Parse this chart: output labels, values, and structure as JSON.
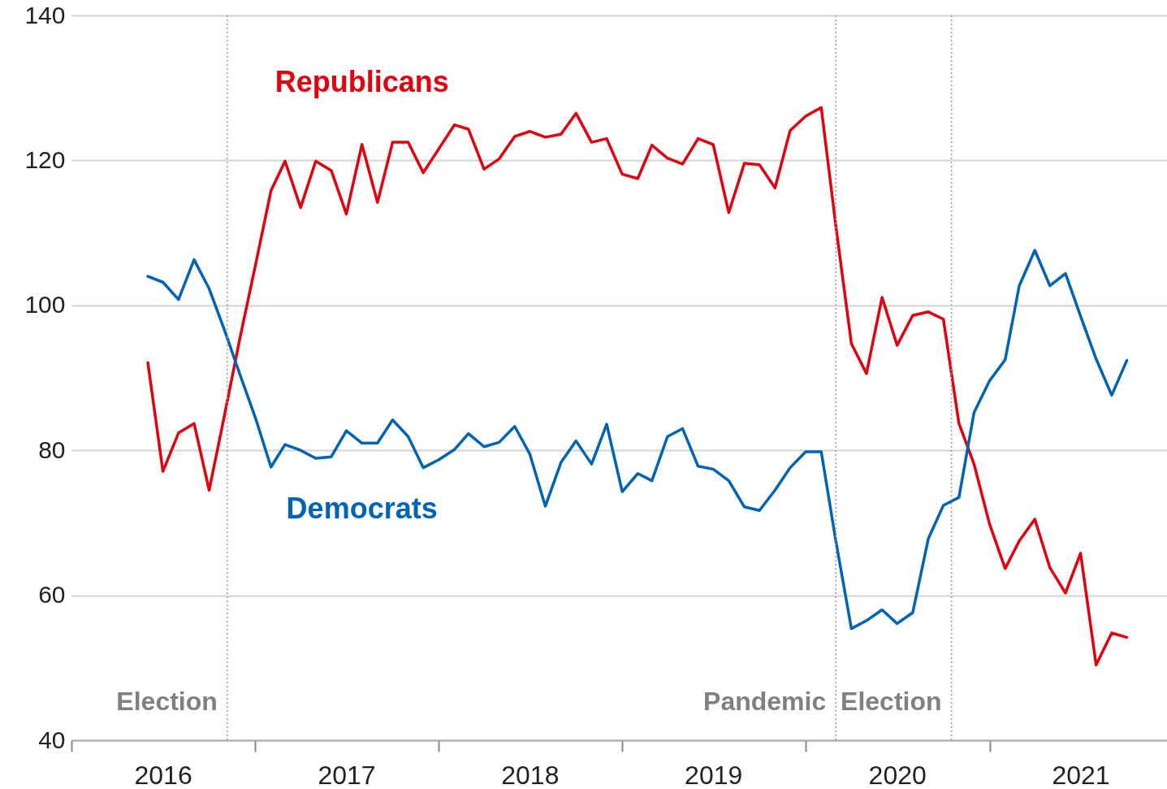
{
  "chart_data": {
    "type": "line",
    "x": [
      "2016-06",
      "2016-07",
      "2016-08",
      "2016-09",
      "2016-10",
      "2016-11",
      "2016-12",
      "2017-01",
      "2017-02",
      "2017-03",
      "2017-04",
      "2017-05",
      "2017-06",
      "2017-07",
      "2017-08",
      "2017-09",
      "2017-10",
      "2017-11",
      "2017-12",
      "2018-01",
      "2018-02",
      "2018-03",
      "2018-04",
      "2018-05",
      "2018-06",
      "2018-07",
      "2018-08",
      "2018-09",
      "2018-10",
      "2018-11",
      "2018-12",
      "2019-01",
      "2019-02",
      "2019-03",
      "2019-04",
      "2019-05",
      "2019-06",
      "2019-07",
      "2019-08",
      "2019-09",
      "2019-10",
      "2019-11",
      "2019-12",
      "2020-01",
      "2020-02",
      "2020-03",
      "2020-04",
      "2020-05",
      "2020-06",
      "2020-07",
      "2020-08",
      "2020-09",
      "2020-10",
      "2020-11",
      "2020-12",
      "2021-01",
      "2021-02",
      "2021-03",
      "2021-04",
      "2021-05",
      "2021-06",
      "2021-07",
      "2021-08",
      "2021-09",
      "2021-10"
    ],
    "series": [
      {
        "name": "Republicans",
        "color": "#e3000f",
        "values": [
          92.1,
          77.1,
          82.4,
          83.7,
          74.5,
          85,
          95.4,
          105.5,
          115.8,
          119.9,
          113.5,
          119.9,
          118.6,
          112.6,
          122.2,
          114.2,
          122.5,
          122.5,
          118.3,
          121.6,
          124.9,
          124.3,
          118.8,
          120.2,
          123.3,
          124.0,
          123.2,
          123.6,
          126.5,
          122.5,
          123.0,
          118.1,
          117.5,
          122.1,
          120.3,
          119.5,
          123.0,
          122.2,
          112.8,
          119.6,
          119.4,
          116.2,
          124.1,
          126.1,
          127.3,
          111,
          94.7,
          90.6,
          101.1,
          94.5,
          98.6,
          99.1,
          98.1,
          83.7,
          78.1,
          69.8,
          63.7,
          67.5,
          70.5,
          63.8,
          60.3,
          65.8,
          50.4,
          54.8,
          54.2
        ]
      },
      {
        "name": "Democrats",
        "color": "#0063b5",
        "values": [
          104.0,
          103.2,
          100.8,
          106.3,
          102.3,
          96.5,
          90.5,
          84.5,
          77.7,
          80.8,
          80.0,
          78.9,
          79.1,
          82.7,
          81.0,
          81.0,
          84.2,
          81.9,
          77.6,
          78.7,
          80.1,
          82.3,
          80.5,
          81.1,
          83.3,
          79.5,
          72.3,
          78.3,
          81.3,
          78.1,
          83.6,
          74.3,
          76.8,
          75.8,
          81.9,
          83.0,
          77.8,
          77.4,
          75.8,
          72.2,
          71.7,
          74.5,
          77.6,
          79.8,
          79.8,
          67.5,
          55.4,
          56.5,
          58.0,
          56.1,
          57.6,
          67.8,
          72.4,
          73.5,
          85.2,
          89.6,
          92.5,
          102.7,
          107.6,
          102.7,
          104.4,
          98.5,
          92.6,
          87.6,
          92.4
        ]
      }
    ],
    "xlim": [
      "2016-01",
      "2021-12-20"
    ],
    "xticks": [
      {
        "value": "2016-01",
        "label": null
      },
      {
        "value": "2016-07",
        "label": "2016"
      },
      {
        "value": "2017-01",
        "label": null
      },
      {
        "value": "2017-07",
        "label": "2017"
      },
      {
        "value": "2018-01",
        "label": null
      },
      {
        "value": "2018-07",
        "label": "2018"
      },
      {
        "value": "2019-01",
        "label": null
      },
      {
        "value": "2019-07",
        "label": "2019"
      },
      {
        "value": "2020-01",
        "label": null
      },
      {
        "value": "2020-07",
        "label": "2020"
      },
      {
        "value": "2021-01",
        "label": null
      },
      {
        "value": "2021-07",
        "label": "2021"
      }
    ],
    "ylim": [
      40,
      140
    ],
    "yticks": [
      40,
      60,
      80,
      100,
      120,
      140
    ],
    "grid": "y",
    "ref_lines": [
      {
        "axis": "x",
        "value": "2016-11-06",
        "label": "Election",
        "color": "#999999",
        "line_style": "dotted"
      },
      {
        "axis": "x",
        "value": "2020-03-01",
        "label": "Pandemic",
        "color": "#999999",
        "line_style": "dotted"
      },
      {
        "axis": "x",
        "value": "2020-10-17",
        "label": "Election",
        "color": "#999999",
        "line_style": "dotted"
      }
    ]
  }
}
